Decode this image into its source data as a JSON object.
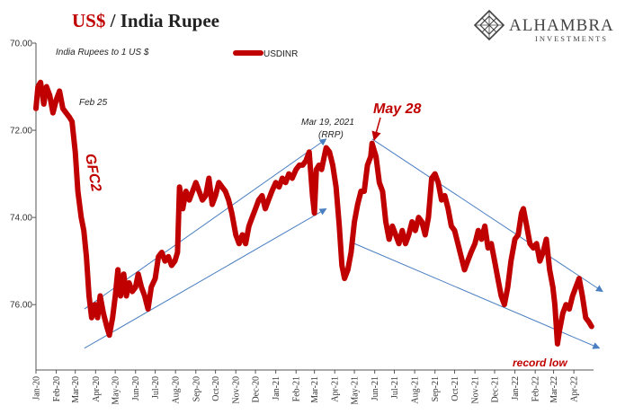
{
  "title": {
    "part1": "US$",
    "part2": " / India Rupee"
  },
  "subtitle": "India Rupees to 1 US $",
  "logo": {
    "name": "ALHAMBRA",
    "sub": "INVESTMENTS"
  },
  "colors": {
    "series": "#c00000",
    "trend": "#4a7fc1",
    "axis": "#555555"
  },
  "chart_data": {
    "type": "line",
    "title": "US$ / India Rupee",
    "ylabel": "India Rupees to 1 US $",
    "xlabel": "",
    "y_inverted": true,
    "ylim": [
      70.0,
      77.5
    ],
    "yticks": [
      70.0,
      72.0,
      74.0,
      76.0
    ],
    "ytick_labels": [
      "70.00",
      "72.00",
      "74.00",
      "76.00"
    ],
    "x_tick_labels": [
      "Jan-20",
      "Feb-20",
      "Mar-20",
      "Apr-20",
      "May-20",
      "Jun-20",
      "Jul-20",
      "Aug-20",
      "Sep-20",
      "Oct-20",
      "Nov-20",
      "Dec-20",
      "Jan-21",
      "Feb-21",
      "Mar-21",
      "Apr-21",
      "May-21",
      "Jun-21",
      "Jul-21",
      "Aug-21",
      "Sep-21",
      "Oct-21",
      "Nov-21",
      "Dec-21",
      "Jan-22",
      "Feb-22",
      "Mar-22",
      "Apr-22"
    ],
    "legend": {
      "position": "top-center",
      "entries": [
        "USDINR"
      ]
    },
    "grid": false,
    "series": [
      {
        "name": "USDINR",
        "points": [
          [
            "2020-01-01",
            71.5
          ],
          [
            "2020-01-04",
            71.0
          ],
          [
            "2020-01-08",
            70.9
          ],
          [
            "2020-01-13",
            71.4
          ],
          [
            "2020-01-17",
            71.0
          ],
          [
            "2020-01-22",
            71.2
          ],
          [
            "2020-01-27",
            71.6
          ],
          [
            "2020-02-01",
            71.3
          ],
          [
            "2020-02-06",
            71.1
          ],
          [
            "2020-02-11",
            71.5
          ],
          [
            "2020-02-16",
            71.6
          ],
          [
            "2020-02-21",
            71.7
          ],
          [
            "2020-02-25",
            71.8
          ],
          [
            "2020-03-01",
            72.5
          ],
          [
            "2020-03-05",
            73.4
          ],
          [
            "2020-03-10",
            74.0
          ],
          [
            "2020-03-14",
            74.3
          ],
          [
            "2020-03-18",
            74.9
          ],
          [
            "2020-03-22",
            75.8
          ],
          [
            "2020-03-26",
            76.3
          ],
          [
            "2020-03-31",
            76.0
          ],
          [
            "2020-04-04",
            76.3
          ],
          [
            "2020-04-08",
            75.8
          ],
          [
            "2020-04-13",
            76.2
          ],
          [
            "2020-04-18",
            76.5
          ],
          [
            "2020-04-22",
            76.7
          ],
          [
            "2020-04-27",
            76.3
          ],
          [
            "2020-05-01",
            75.8
          ],
          [
            "2020-05-05",
            75.2
          ],
          [
            "2020-05-09",
            75.8
          ],
          [
            "2020-05-14",
            75.3
          ],
          [
            "2020-05-18",
            75.8
          ],
          [
            "2020-05-22",
            75.5
          ],
          [
            "2020-05-27",
            75.7
          ],
          [
            "2020-06-01",
            75.6
          ],
          [
            "2020-06-05",
            75.3
          ],
          [
            "2020-06-10",
            75.6
          ],
          [
            "2020-06-15",
            75.8
          ],
          [
            "2020-06-20",
            76.1
          ],
          [
            "2020-06-25",
            75.6
          ],
          [
            "2020-07-01",
            75.4
          ],
          [
            "2020-07-06",
            74.9
          ],
          [
            "2020-07-11",
            74.8
          ],
          [
            "2020-07-16",
            75.0
          ],
          [
            "2020-07-21",
            74.9
          ],
          [
            "2020-07-26",
            75.1
          ],
          [
            "2020-07-31",
            75.0
          ],
          [
            "2020-08-04",
            74.8
          ],
          [
            "2020-08-07",
            73.3
          ],
          [
            "2020-08-12",
            73.8
          ],
          [
            "2020-08-17",
            73.4
          ],
          [
            "2020-08-22",
            73.6
          ],
          [
            "2020-08-27",
            73.4
          ],
          [
            "2020-09-01",
            73.2
          ],
          [
            "2020-09-06",
            73.4
          ],
          [
            "2020-09-11",
            73.6
          ],
          [
            "2020-09-16",
            73.5
          ],
          [
            "2020-09-21",
            73.1
          ],
          [
            "2020-09-26",
            73.7
          ],
          [
            "2020-10-01",
            73.5
          ],
          [
            "2020-10-06",
            73.2
          ],
          [
            "2020-10-11",
            73.3
          ],
          [
            "2020-10-16",
            73.4
          ],
          [
            "2020-10-21",
            73.6
          ],
          [
            "2020-10-26",
            73.9
          ],
          [
            "2020-11-01",
            74.4
          ],
          [
            "2020-11-06",
            74.6
          ],
          [
            "2020-11-11",
            74.4
          ],
          [
            "2020-11-16",
            74.6
          ],
          [
            "2020-11-21",
            74.2
          ],
          [
            "2020-11-26",
            74.0
          ],
          [
            "2020-12-01",
            73.8
          ],
          [
            "2020-12-06",
            73.6
          ],
          [
            "2020-12-11",
            73.5
          ],
          [
            "2020-12-16",
            73.8
          ],
          [
            "2020-12-21",
            73.6
          ],
          [
            "2020-12-26",
            73.4
          ],
          [
            "2021-01-01",
            73.2
          ],
          [
            "2021-01-06",
            73.3
          ],
          [
            "2021-01-11",
            73.1
          ],
          [
            "2021-01-16",
            73.2
          ],
          [
            "2021-01-21",
            73.0
          ],
          [
            "2021-01-26",
            73.1
          ],
          [
            "2021-02-01",
            72.9
          ],
          [
            "2021-02-06",
            72.8
          ],
          [
            "2021-02-11",
            72.8
          ],
          [
            "2021-02-16",
            72.7
          ],
          [
            "2021-02-21",
            72.5
          ],
          [
            "2021-02-26",
            73.5
          ],
          [
            "2021-03-01",
            73.9
          ],
          [
            "2021-03-04",
            72.9
          ],
          [
            "2021-03-08",
            72.8
          ],
          [
            "2021-03-12",
            72.9
          ],
          [
            "2021-03-16",
            72.6
          ],
          [
            "2021-03-19",
            72.4
          ],
          [
            "2021-03-24",
            72.5
          ],
          [
            "2021-03-29",
            72.8
          ],
          [
            "2021-04-03",
            73.3
          ],
          [
            "2021-04-08",
            74.2
          ],
          [
            "2021-04-12",
            75.1
          ],
          [
            "2021-04-16",
            75.4
          ],
          [
            "2021-04-21",
            75.2
          ],
          [
            "2021-04-26",
            74.8
          ],
          [
            "2021-05-01",
            74.1
          ],
          [
            "2021-05-06",
            73.7
          ],
          [
            "2021-05-11",
            73.4
          ],
          [
            "2021-05-16",
            73.4
          ],
          [
            "2021-05-21",
            72.8
          ],
          [
            "2021-05-26",
            72.6
          ],
          [
            "2021-05-28",
            72.3
          ],
          [
            "2021-06-03",
            72.6
          ],
          [
            "2021-06-08",
            73.2
          ],
          [
            "2021-06-13",
            73.4
          ],
          [
            "2021-06-18",
            74.1
          ],
          [
            "2021-06-23",
            74.5
          ],
          [
            "2021-06-28",
            74.2
          ],
          [
            "2021-07-03",
            74.4
          ],
          [
            "2021-07-08",
            74.6
          ],
          [
            "2021-07-13",
            74.3
          ],
          [
            "2021-07-18",
            74.6
          ],
          [
            "2021-07-23",
            74.4
          ],
          [
            "2021-07-28",
            74.1
          ],
          [
            "2021-08-02",
            74.3
          ],
          [
            "2021-08-07",
            74.0
          ],
          [
            "2021-08-12",
            74.1
          ],
          [
            "2021-08-17",
            74.4
          ],
          [
            "2021-08-22",
            74.0
          ],
          [
            "2021-08-27",
            73.1
          ],
          [
            "2021-09-01",
            73.0
          ],
          [
            "2021-09-06",
            73.2
          ],
          [
            "2021-09-11",
            73.6
          ],
          [
            "2021-09-16",
            73.5
          ],
          [
            "2021-09-21",
            73.8
          ],
          [
            "2021-09-26",
            74.2
          ],
          [
            "2021-10-01",
            74.3
          ],
          [
            "2021-10-06",
            74.6
          ],
          [
            "2021-10-11",
            74.9
          ],
          [
            "2021-10-16",
            75.2
          ],
          [
            "2021-10-21",
            75.0
          ],
          [
            "2021-10-26",
            74.8
          ],
          [
            "2021-11-01",
            74.6
          ],
          [
            "2021-11-06",
            74.3
          ],
          [
            "2021-11-11",
            74.5
          ],
          [
            "2021-11-16",
            74.2
          ],
          [
            "2021-11-21",
            74.7
          ],
          [
            "2021-11-26",
            74.6
          ],
          [
            "2021-12-01",
            75.0
          ],
          [
            "2021-12-06",
            75.4
          ],
          [
            "2021-12-11",
            75.8
          ],
          [
            "2021-12-16",
            76.0
          ],
          [
            "2021-12-21",
            75.6
          ],
          [
            "2021-12-26",
            75.0
          ],
          [
            "2022-01-01",
            74.5
          ],
          [
            "2022-01-06",
            74.4
          ],
          [
            "2022-01-11",
            73.9
          ],
          [
            "2022-01-14",
            73.8
          ],
          [
            "2022-01-19",
            74.2
          ],
          [
            "2022-01-24",
            74.6
          ],
          [
            "2022-01-29",
            74.7
          ],
          [
            "2022-02-03",
            74.6
          ],
          [
            "2022-02-08",
            75.0
          ],
          [
            "2022-02-13",
            74.8
          ],
          [
            "2022-02-18",
            74.5
          ],
          [
            "2022-02-23",
            75.2
          ],
          [
            "2022-02-28",
            75.6
          ],
          [
            "2022-03-03",
            76.0
          ],
          [
            "2022-03-07",
            76.9
          ],
          [
            "2022-03-10",
            76.6
          ],
          [
            "2022-03-15",
            76.2
          ],
          [
            "2022-03-20",
            76.0
          ],
          [
            "2022-03-25",
            76.1
          ],
          [
            "2022-03-30",
            75.8
          ],
          [
            "2022-04-04",
            75.6
          ],
          [
            "2022-04-09",
            75.4
          ],
          [
            "2022-04-14",
            75.8
          ],
          [
            "2022-04-19",
            76.3
          ],
          [
            "2022-04-24",
            76.4
          ],
          [
            "2022-04-28",
            76.5
          ]
        ]
      }
    ],
    "trend_lines": [
      {
        "from": [
          "2020-03-15",
          76.1
        ],
        "to": [
          "2021-03-19",
          72.2
        ]
      },
      {
        "from": [
          "2020-03-15",
          77.0
        ],
        "to": [
          "2021-03-19",
          73.8
        ]
      },
      {
        "from": [
          "2021-05-28",
          72.2
        ],
        "to": [
          "2022-05-15",
          75.7
        ]
      },
      {
        "from": [
          "2021-05-01",
          74.6
        ],
        "to": [
          "2022-05-10",
          77.0
        ]
      }
    ],
    "annotations": [
      {
        "text": "Feb 25",
        "date": "2020-02-25",
        "style": "note"
      },
      {
        "text": "GFC2",
        "date": "2020-03-20",
        "style": "red"
      },
      {
        "text": "Mar 19, 2021",
        "date": "2021-03-19",
        "style": "note"
      },
      {
        "text": "(RRP)",
        "date": "2021-03-19",
        "style": "note"
      },
      {
        "text": "May 28",
        "date": "2021-05-28",
        "style": "red-large"
      },
      {
        "text": "record low",
        "date": "2022-03-07",
        "style": "red-small"
      }
    ]
  }
}
